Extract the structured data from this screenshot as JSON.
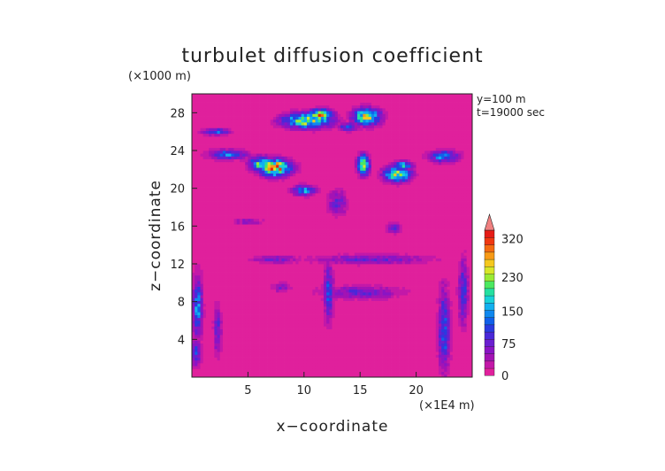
{
  "chart_data": {
    "type": "heatmap",
    "title": "turbulet diffusion coefficient",
    "xlabel": "x−coordinate",
    "ylabel": "z−coordinate",
    "x_unit": "(×1E4 m)",
    "y_unit": "(×1000 m)",
    "xlim": [
      0,
      25
    ],
    "ylim": [
      0,
      30
    ],
    "x_ticks": [
      5,
      10,
      15,
      20
    ],
    "y_ticks": [
      4,
      8,
      12,
      16,
      20,
      24,
      28
    ],
    "annotations": [
      "y=100  m",
      "t=19000 sec"
    ],
    "colorbar": {
      "range": [
        0,
        340
      ],
      "tick_values": [
        0,
        75,
        150,
        230,
        320
      ],
      "tick_labels": [
        "0",
        "75",
        "150",
        "230",
        "320"
      ],
      "colors": [
        "#e0209c",
        "#c318a8",
        "#a313b4",
        "#8a14c4",
        "#6a1fd0",
        "#4a28d8",
        "#2a3be0",
        "#1060ea",
        "#0f88ef",
        "#12b0ef",
        "#18d2d8",
        "#25e0a0",
        "#4ce860",
        "#9aea34",
        "#d8e628",
        "#f5c81e",
        "#f79a16",
        "#f46a10",
        "#f03810",
        "#e61c16"
      ],
      "extend": "max"
    },
    "background_value": 10,
    "features": [
      {
        "x": 7.4,
        "z": 22.2,
        "rx": 1.6,
        "rz": 1.0,
        "peak": 300
      },
      {
        "x": 6.2,
        "z": 22.6,
        "rx": 1.2,
        "rz": 0.9,
        "peak": 200
      },
      {
        "x": 10.3,
        "z": 27.2,
        "rx": 2.5,
        "rz": 0.9,
        "peak": 230
      },
      {
        "x": 11.5,
        "z": 27.8,
        "rx": 1.2,
        "rz": 0.7,
        "peak": 260
      },
      {
        "x": 15.3,
        "z": 22.5,
        "rx": 0.6,
        "rz": 1.2,
        "peak": 250
      },
      {
        "x": 15.6,
        "z": 27.6,
        "rx": 1.4,
        "rz": 1.0,
        "peak": 230
      },
      {
        "x": 18.3,
        "z": 21.5,
        "rx": 1.4,
        "rz": 0.9,
        "peak": 220
      },
      {
        "x": 18.8,
        "z": 22.4,
        "rx": 1.0,
        "rz": 0.6,
        "peak": 160
      },
      {
        "x": 3.2,
        "z": 23.6,
        "rx": 2.0,
        "rz": 0.6,
        "peak": 130
      },
      {
        "x": 22.5,
        "z": 23.4,
        "rx": 1.5,
        "rz": 0.7,
        "peak": 150
      },
      {
        "x": 10.0,
        "z": 19.8,
        "rx": 1.2,
        "rz": 0.6,
        "peak": 150
      },
      {
        "x": 2.2,
        "z": 26.0,
        "rx": 1.4,
        "rz": 0.4,
        "peak": 120
      },
      {
        "x": 14.0,
        "z": 26.5,
        "rx": 1.0,
        "rz": 0.5,
        "peak": 120
      },
      {
        "x": 0.5,
        "z": 7.5,
        "rx": 0.5,
        "rz": 3.5,
        "peak": 150
      },
      {
        "x": 0.4,
        "z": 2.5,
        "rx": 0.5,
        "rz": 1.5,
        "peak": 120
      },
      {
        "x": 2.3,
        "z": 5.0,
        "rx": 0.4,
        "rz": 3.0,
        "peak": 90
      },
      {
        "x": 12.2,
        "z": 9.0,
        "rx": 0.5,
        "rz": 3.5,
        "peak": 110
      },
      {
        "x": 22.5,
        "z": 5.0,
        "rx": 0.6,
        "rz": 5.0,
        "peak": 120
      },
      {
        "x": 24.2,
        "z": 9.0,
        "rx": 0.5,
        "rz": 4.0,
        "peak": 100
      },
      {
        "x": 15.0,
        "z": 9.0,
        "rx": 4.0,
        "rz": 0.8,
        "peak": 80
      },
      {
        "x": 16.0,
        "z": 12.5,
        "rx": 6.0,
        "rz": 0.6,
        "peak": 75
      },
      {
        "x": 7.5,
        "z": 12.5,
        "rx": 2.5,
        "rz": 0.5,
        "peak": 70
      },
      {
        "x": 18.0,
        "z": 15.8,
        "rx": 0.8,
        "rz": 0.6,
        "peak": 80
      },
      {
        "x": 8.0,
        "z": 9.5,
        "rx": 1.0,
        "rz": 0.6,
        "peak": 60
      },
      {
        "x": 13.0,
        "z": 18.5,
        "rx": 1.0,
        "rz": 1.5,
        "peak": 80
      },
      {
        "x": 5.0,
        "z": 16.5,
        "rx": 1.5,
        "rz": 0.4,
        "peak": 60
      }
    ]
  }
}
